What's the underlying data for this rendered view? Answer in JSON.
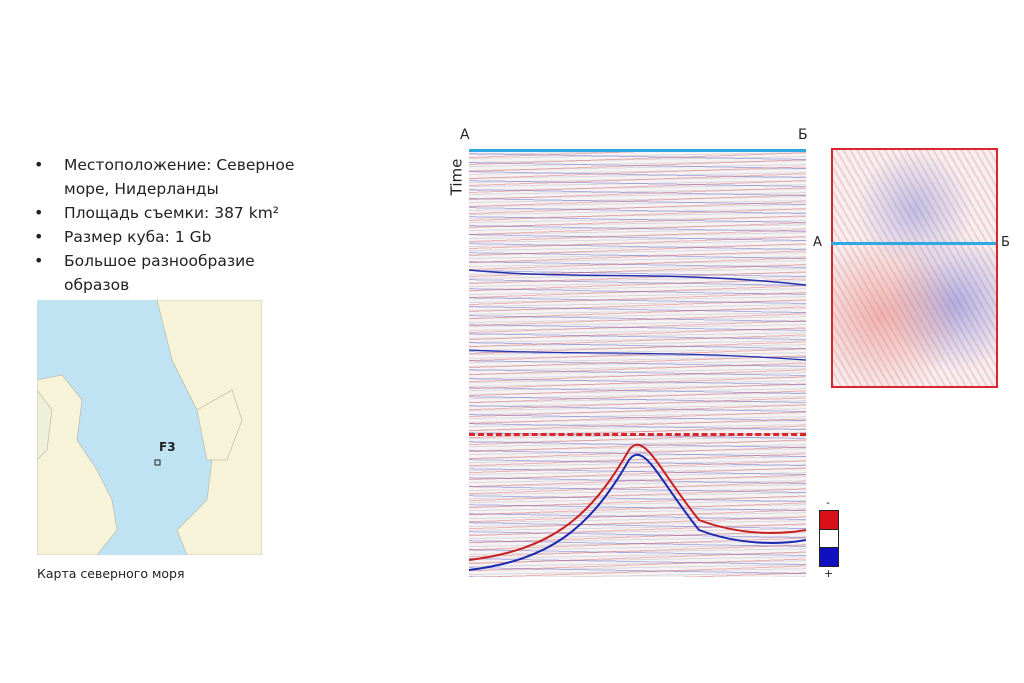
{
  "bullets": [
    "Местоположение: Северное море, Нидерланды",
    "Площадь съемки: 387 km²",
    "Размер куба: 1 Gb",
    "Большое разнообразие образов"
  ],
  "map": {
    "label": "F3",
    "caption": "Карта северного моря"
  },
  "seismic": {
    "left_label": "А",
    "right_label": "Б",
    "axis_label": "Time"
  },
  "inset": {
    "left_label": "А",
    "right_label": "Б"
  },
  "colorbar": {
    "top_label": "-",
    "bottom_label": "+",
    "colors": [
      "#d8101a",
      "#ffffff",
      "#1010c0"
    ]
  },
  "colors": {
    "section_line": "#2ea8e0",
    "highlight": "#d8262c"
  }
}
